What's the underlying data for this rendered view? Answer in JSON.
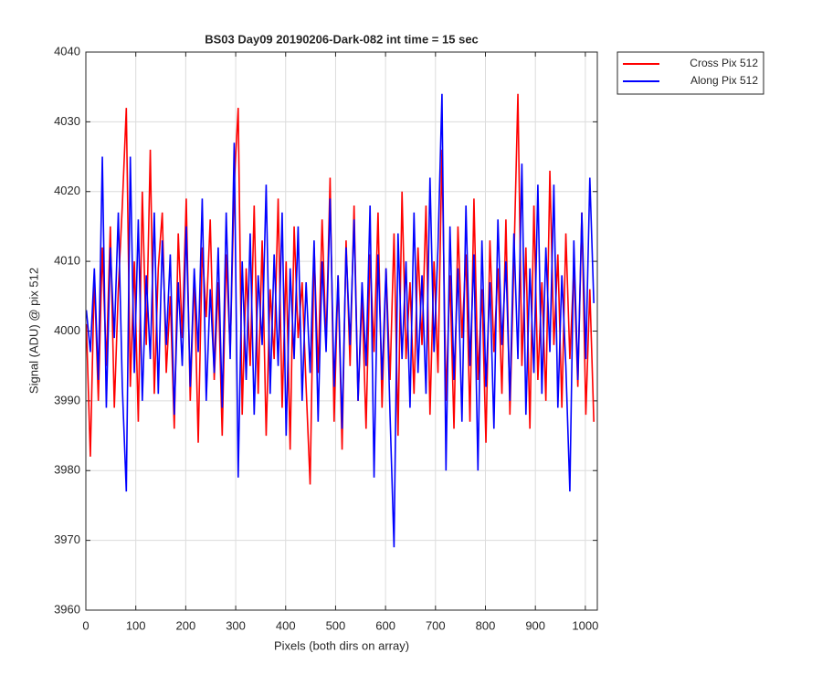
{
  "chart_data": {
    "type": "line",
    "title": "BS03 Day09 20190206-Dark-082 int time = 15 sec",
    "xlabel": "Pixels (both dirs on array)",
    "ylabel": "Signal (ADU) @ pix 512",
    "x": [
      1,
      9,
      17,
      25,
      33,
      41,
      49,
      57,
      65,
      73,
      81,
      89,
      97,
      105,
      113,
      121,
      129,
      137,
      145,
      153,
      161,
      169,
      177,
      185,
      193,
      201,
      209,
      217,
      225,
      233,
      241,
      249,
      257,
      265,
      273,
      281,
      289,
      297,
      305,
      313,
      321,
      329,
      337,
      345,
      353,
      361,
      369,
      377,
      385,
      393,
      401,
      409,
      417,
      425,
      433,
      441,
      449,
      457,
      465,
      473,
      481,
      489,
      497,
      505,
      513,
      521,
      529,
      537,
      545,
      553,
      561,
      569,
      577,
      585,
      593,
      601,
      609,
      617,
      625,
      633,
      641,
      649,
      657,
      665,
      673,
      681,
      689,
      697,
      705,
      713,
      721,
      729,
      737,
      745,
      753,
      761,
      769,
      777,
      785,
      793,
      801,
      809,
      817,
      825,
      833,
      841,
      849,
      857,
      865,
      873,
      881,
      889,
      897,
      905,
      913,
      921,
      929,
      937,
      945,
      953,
      961,
      969,
      977,
      985,
      993,
      1001,
      1009,
      1017
    ],
    "series": [
      {
        "name": "Cross Pix 512",
        "color": "#ff0000",
        "values": [
          4001,
          3982,
          4008,
          3990,
          4012,
          3995,
          4015,
          3989,
          4006,
          4018,
          4032,
          3992,
          4010,
          3987,
          4020,
          3998,
          4026,
          3991,
          4009,
          4017,
          3994,
          4005,
          3986,
          4014,
          3999,
          4019,
          3990,
          4008,
          3984,
          4012,
          4002,
          4016,
          3993,
          4007,
          3985,
          4011,
          3997,
          4021,
          4032,
          3988,
          4009,
          3995,
          4018,
          3991,
          4013,
          3985,
          4006,
          3996,
          4019,
          3989,
          4010,
          3983,
          4015,
          3999,
          4007,
          3992,
          3978,
          4012,
          3994,
          4016,
          3998,
          4022,
          3987,
          4008,
          3983,
          4013,
          3995,
          4018,
          3990,
          4005,
          3986,
          4011,
          3997,
          4017,
          3989,
          4009,
          3993,
          4014,
          3985,
          4020,
          3996,
          4007,
          3991,
          4012,
          3998,
          4018,
          3988,
          4010,
          3994,
          4026,
          3990,
          4008,
          3986,
          4015,
          3999,
          4011,
          3987,
          4019,
          3993,
          4006,
          3984,
          4013,
          3997,
          4009,
          3991,
          4016,
          3988,
          4010,
          4034,
          3995,
          4012,
          3986,
          4018,
          3993,
          4007,
          3990,
          4023,
          3998,
          4011,
          3989,
          4014,
          3996,
          4009,
          3992,
          4017,
          3988,
          4006,
          3987
        ]
      },
      {
        "name": "Along Pix 512",
        "color": "#0000ff",
        "values": [
          4003,
          3997,
          4009,
          3993,
          4025,
          3989,
          4012,
          3999,
          4017,
          3992,
          3977,
          4025,
          3994,
          4016,
          3990,
          4008,
          3996,
          4017,
          3991,
          4013,
          3998,
          4011,
          3988,
          4007,
          3995,
          4015,
          3992,
          4009,
          3997,
          4019,
          3990,
          4006,
          3994,
          4012,
          3989,
          4017,
          3996,
          4027,
          3979,
          4010,
          3993,
          4014,
          3988,
          4008,
          3998,
          4021,
          3991,
          4011,
          3995,
          4017,
          3985,
          4009,
          3996,
          4015,
          3990,
          4007,
          3994,
          4013,
          3987,
          4010,
          3997,
          4019,
          3992,
          4008,
          3986,
          4012,
          3998,
          4016,
          3990,
          4007,
          3995,
          4018,
          3979,
          4011,
          3993,
          4009,
          3988,
          3969,
          4014,
          3996,
          4010,
          3989,
          4017,
          3994,
          4008,
          3991,
          4022,
          3997,
          4012,
          4034,
          3980,
          4015,
          3993,
          4009,
          3987,
          4018,
          3995,
          4011,
          3980,
          4013,
          3992,
          4007,
          3986,
          4016,
          3998,
          4010,
          3990,
          4014,
          3996,
          4024,
          3988,
          4009,
          3994,
          4021,
          3991,
          4012,
          3997,
          4021,
          3989,
          4008,
          3995,
          3977,
          4013,
          3993,
          4017,
          3996,
          4022,
          4004
        ]
      }
    ],
    "xlim": [
      0,
      1024
    ],
    "xticks": [
      0,
      100,
      200,
      300,
      400,
      500,
      600,
      700,
      800,
      900,
      1000
    ],
    "ylim": [
      3960,
      4040
    ],
    "yticks": [
      3960,
      3970,
      3980,
      3990,
      4000,
      4010,
      4020,
      4030,
      4040
    ],
    "grid": true,
    "legend": "northeast-outside"
  }
}
